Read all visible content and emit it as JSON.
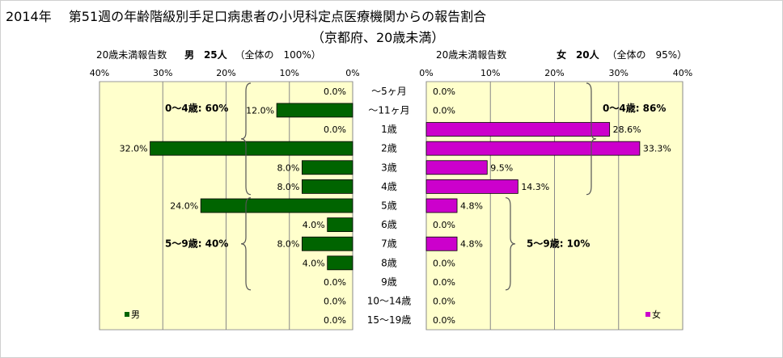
{
  "title_line1": "2014年　 第51週の年齢階級別手足口病患者の小児科定点医療機関からの報告割合",
  "title_line2": "（京都府、20歳未満）",
  "male_header": {
    "label": "20歳未満報告数",
    "sex": "男",
    "count": "25人",
    "share": "（全体の　100%）"
  },
  "female_header": {
    "label": "20歳未満報告数",
    "sex": "女",
    "count": "20人",
    "share": "（全体の　95%）"
  },
  "chart_data": {
    "type": "bar",
    "categories": [
      "～5ヶ月",
      "～11ヶ月",
      "1歳",
      "2歳",
      "3歳",
      "4歳",
      "5歳",
      "6歳",
      "7歳",
      "8歳",
      "9歳",
      "10～14歳",
      "15～19歳"
    ],
    "series": [
      {
        "name": "男",
        "color": "#006400",
        "values": [
          0.0,
          12.0,
          0.0,
          32.0,
          8.0,
          8.0,
          24.0,
          4.0,
          8.0,
          4.0,
          0.0,
          0.0,
          0.0
        ],
        "labels": [
          "0.0%",
          "12.0%",
          "0.0%",
          "32.0%",
          "8.0%",
          "8.0%",
          "24.0%",
          "4.0%",
          "8.0%",
          "4.0%",
          "0.0%",
          "0.0%",
          "0.0%"
        ]
      },
      {
        "name": "女",
        "color": "#cc00cc",
        "values": [
          0.0,
          0.0,
          28.6,
          33.3,
          9.5,
          14.3,
          4.8,
          0.0,
          4.8,
          0.0,
          0.0,
          0.0,
          0.0
        ],
        "labels": [
          "0.0%",
          "0.0%",
          "28.6%",
          "33.3%",
          "9.5%",
          "14.3%",
          "4.8%",
          "0.0%",
          "4.8%",
          "0.0%",
          "0.0%",
          "0.0%",
          "0.0%"
        ]
      }
    ],
    "x_ticks": [
      "40%",
      "30%",
      "20%",
      "10%",
      "0%"
    ],
    "x_ticks_female": [
      "0%",
      "10%",
      "20%",
      "30%",
      "40%"
    ],
    "xlim": [
      0,
      40
    ],
    "grid": true,
    "plot_background": "#ffffcc",
    "legend_male": "男",
    "legend_female": "女",
    "annotations_male": [
      "0～4歳: 60%",
      "5～9歳: 40%"
    ],
    "annotations_female": [
      "0～4歳: 86%",
      "5～9歳: 10%"
    ]
  }
}
